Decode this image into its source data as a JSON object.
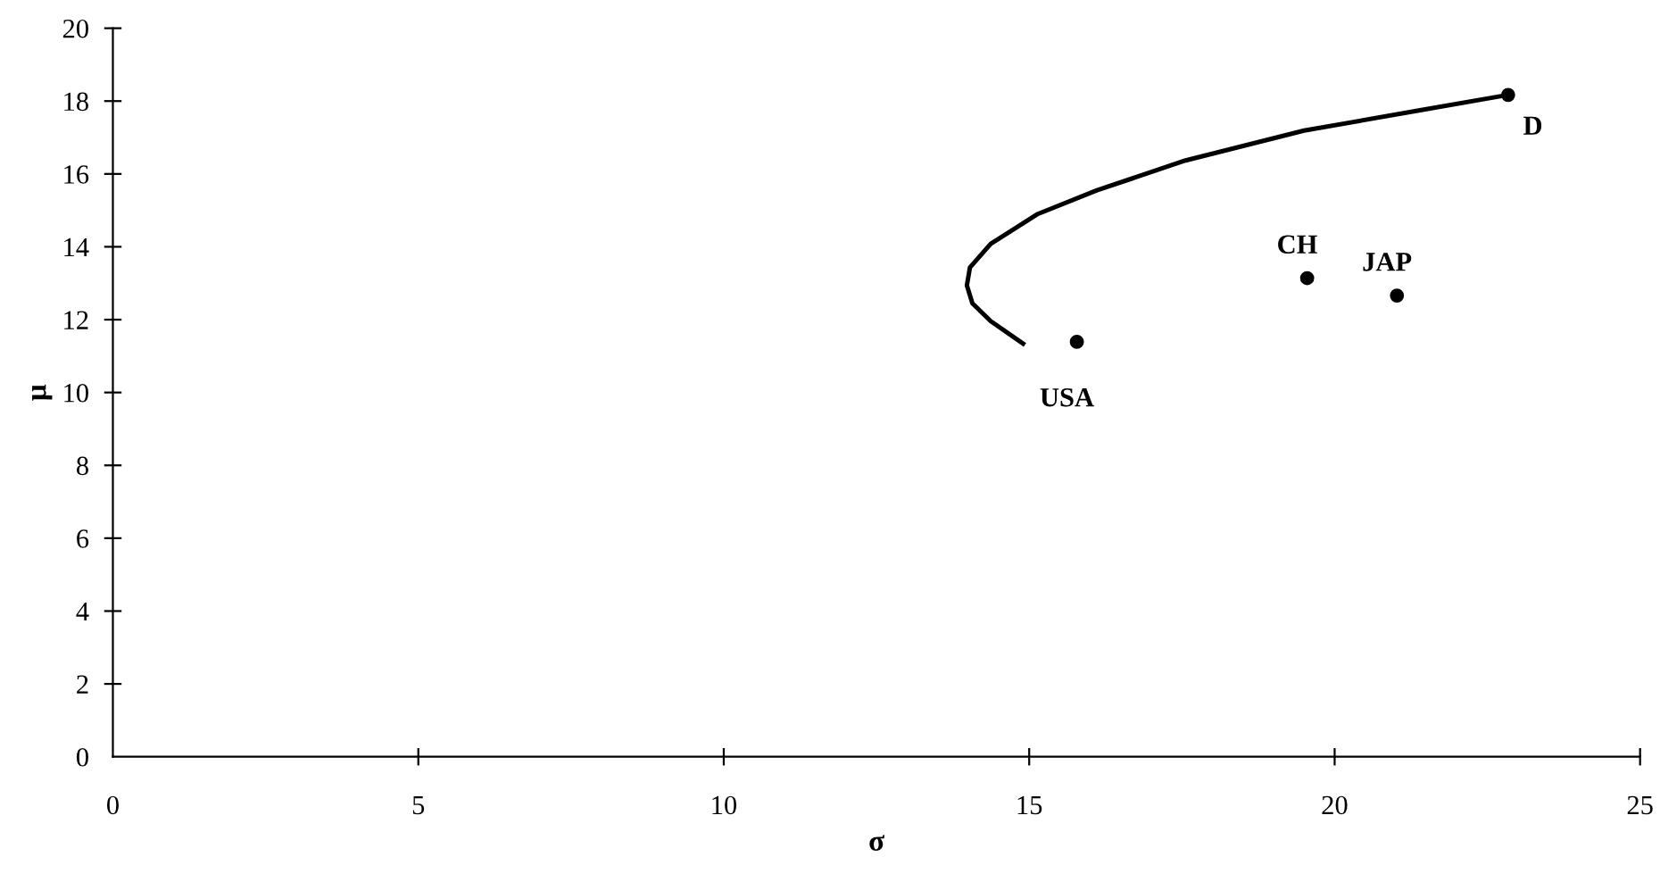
{
  "chart_data": {
    "type": "scatter",
    "xlabel": "σ",
    "ylabel": "μ",
    "xlim": [
      0,
      25
    ],
    "ylim": [
      0,
      20
    ],
    "xticks": [
      0,
      5,
      10,
      15,
      20,
      25
    ],
    "yticks": [
      0,
      2,
      4,
      6,
      8,
      10,
      12,
      14,
      16,
      18,
      20
    ],
    "grid": false,
    "legend": false,
    "series": [
      {
        "type": "line",
        "color": "#000000",
        "marker": "none",
        "line_style": "solid",
        "x": [
          14.9,
          14.37,
          14.07,
          13.98,
          14.03,
          14.37,
          15.14,
          16.11,
          17.56,
          19.5,
          21.44,
          22.84
        ],
        "values": [
          11.34,
          11.96,
          12.45,
          12.94,
          13.43,
          14.08,
          14.9,
          15.55,
          16.37,
          17.19,
          17.76,
          18.17
        ]
      },
      {
        "color": "#000000",
        "marker": "circle",
        "x": [
          22.84,
          19.55,
          21.02,
          15.78
        ],
        "values": [
          18.17,
          13.14,
          12.66,
          11.39
        ]
      }
    ],
    "annotations": [
      {
        "text": "D",
        "x": 22.84,
        "y": 18.17
      },
      {
        "text": "CH",
        "x": 19.55,
        "y": 13.14
      },
      {
        "text": "JAP",
        "x": 21.02,
        "y": 12.66
      },
      {
        "text": "USA",
        "x": 15.78,
        "y": 11.39
      }
    ]
  }
}
